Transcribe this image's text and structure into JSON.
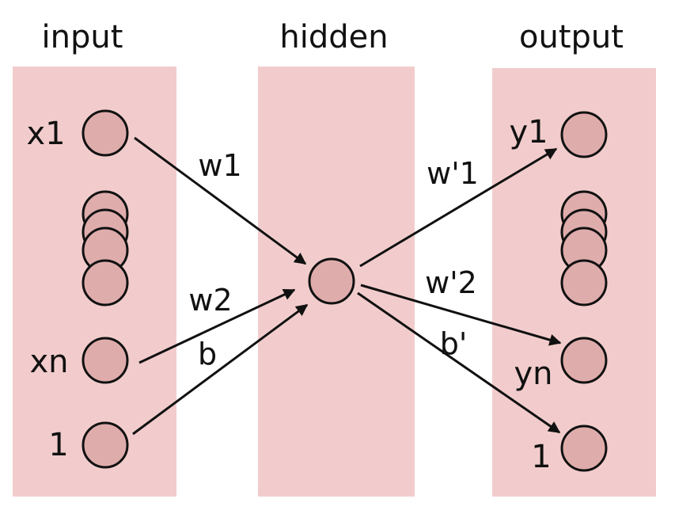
{
  "colors": {
    "band": "#f2cccc",
    "node_fill": "#dfacac",
    "stroke": "#111111"
  },
  "layers": {
    "input": {
      "title": "input",
      "nodes": {
        "x1": "x1",
        "xn": "xn",
        "bias": "1"
      }
    },
    "hidden": {
      "title": "hidden"
    },
    "output": {
      "title": "output",
      "nodes": {
        "y1": "y1",
        "yn": "yn",
        "bias": "1"
      }
    }
  },
  "edges": {
    "w1": "w1",
    "w2": "w2",
    "b": "b",
    "w_prime_1": "w'1",
    "w_prime_2": "w'2",
    "b_prime": "b'"
  }
}
